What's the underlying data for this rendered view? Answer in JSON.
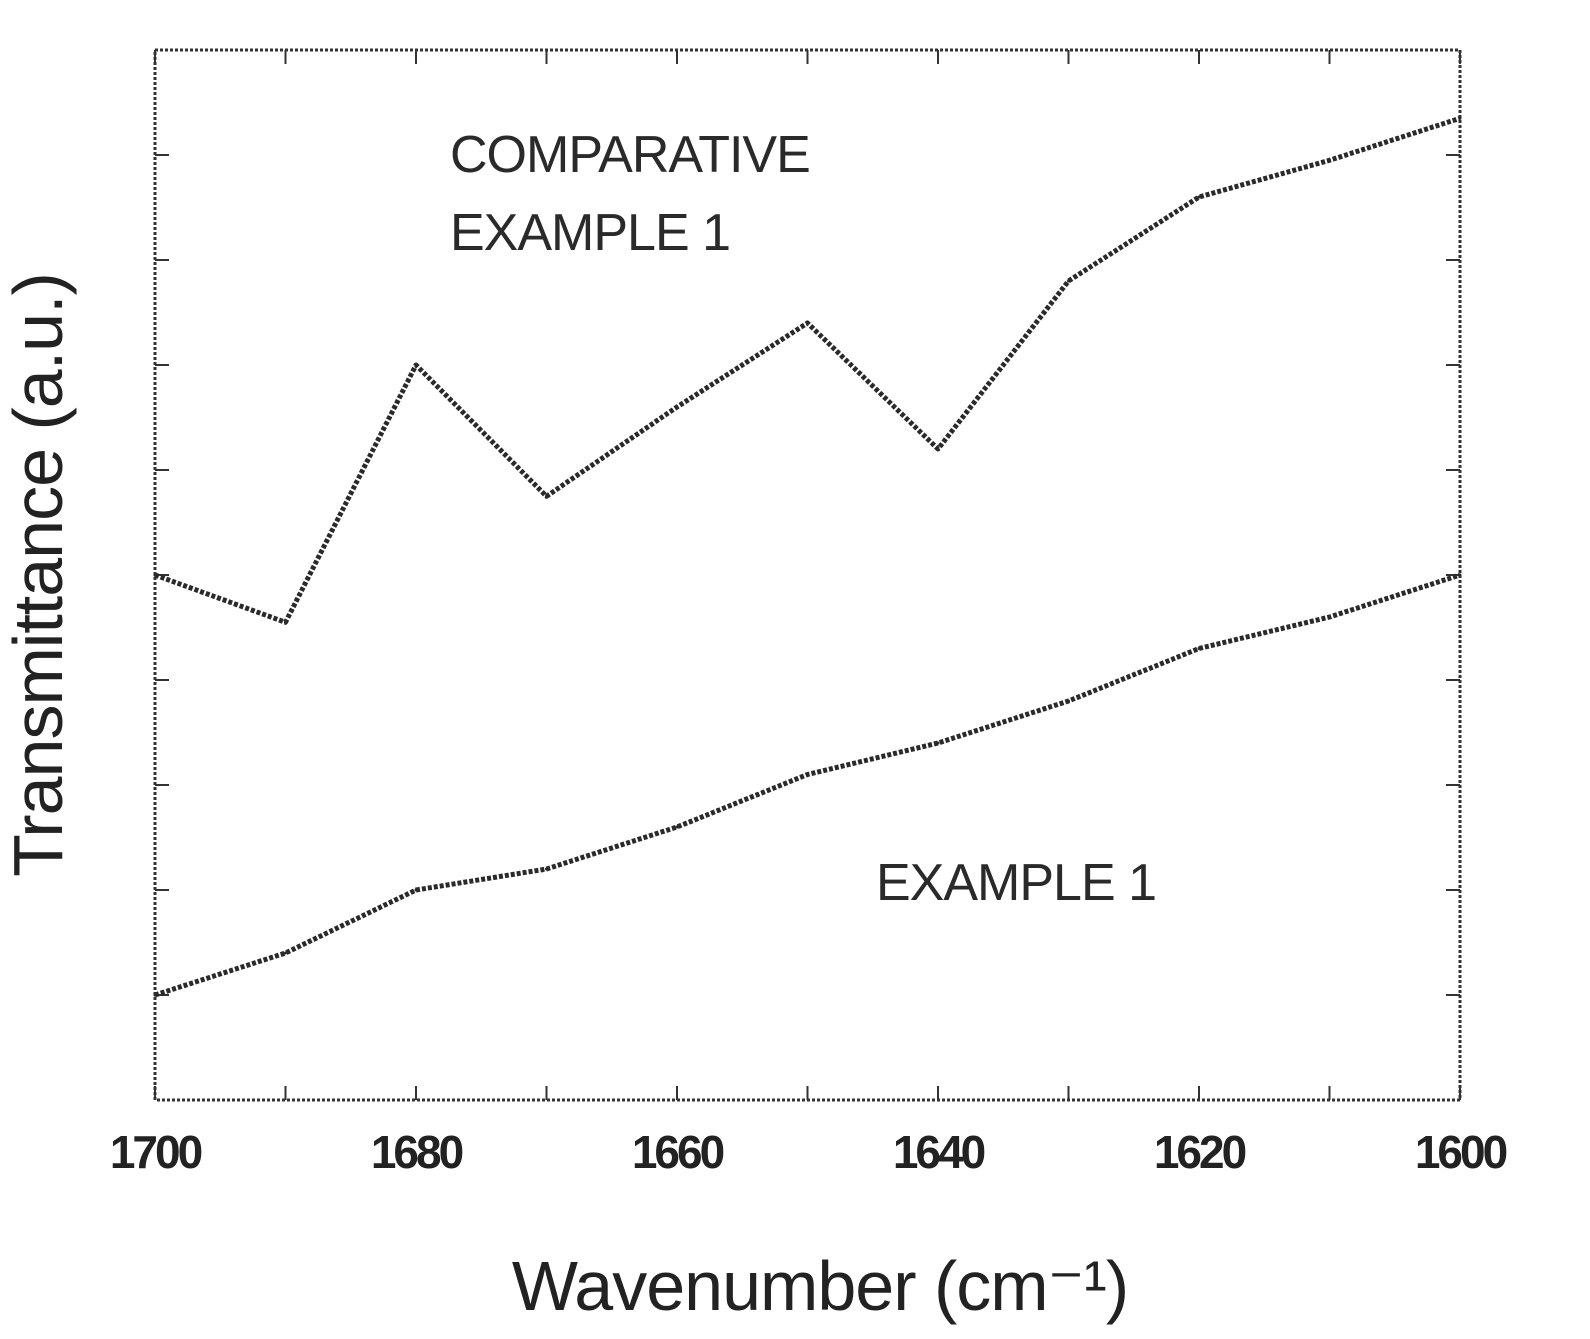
{
  "chart_data": {
    "type": "line",
    "title": "",
    "xlabel": "Wavenumber (cm⁻¹)",
    "ylabel": "Transmittance (a.u.)",
    "xlim": [
      1700,
      1600
    ],
    "ylim": [
      0,
      100
    ],
    "x_reversed": true,
    "x_ticks": [
      1700,
      1680,
      1660,
      1640,
      1620,
      1600
    ],
    "x_tick_labels": [
      "1700",
      "1680",
      "1660",
      "1640",
      "1620",
      "1600"
    ],
    "y_tick_labels_shown": false,
    "grid": false,
    "legend": "none",
    "series": [
      {
        "name": "COMPARATIVE EXAMPLE 1",
        "label_lines": [
          "COMPARATIVE",
          "EXAMPLE 1"
        ],
        "x": [
          1700,
          1690,
          1680,
          1670,
          1660,
          1650,
          1640,
          1630,
          1620,
          1610,
          1600
        ],
        "y": [
          50,
          45.5,
          70,
          57.5,
          66,
          74,
          62,
          78,
          86,
          89.5,
          93.5
        ]
      },
      {
        "name": "EXAMPLE 1",
        "label_lines": [
          "EXAMPLE 1"
        ],
        "x": [
          1700,
          1690,
          1680,
          1670,
          1660,
          1650,
          1640,
          1630,
          1620,
          1610,
          1600
        ],
        "y": [
          10,
          14,
          20,
          22,
          26,
          31,
          34,
          38,
          43,
          46,
          50
        ]
      }
    ]
  }
}
